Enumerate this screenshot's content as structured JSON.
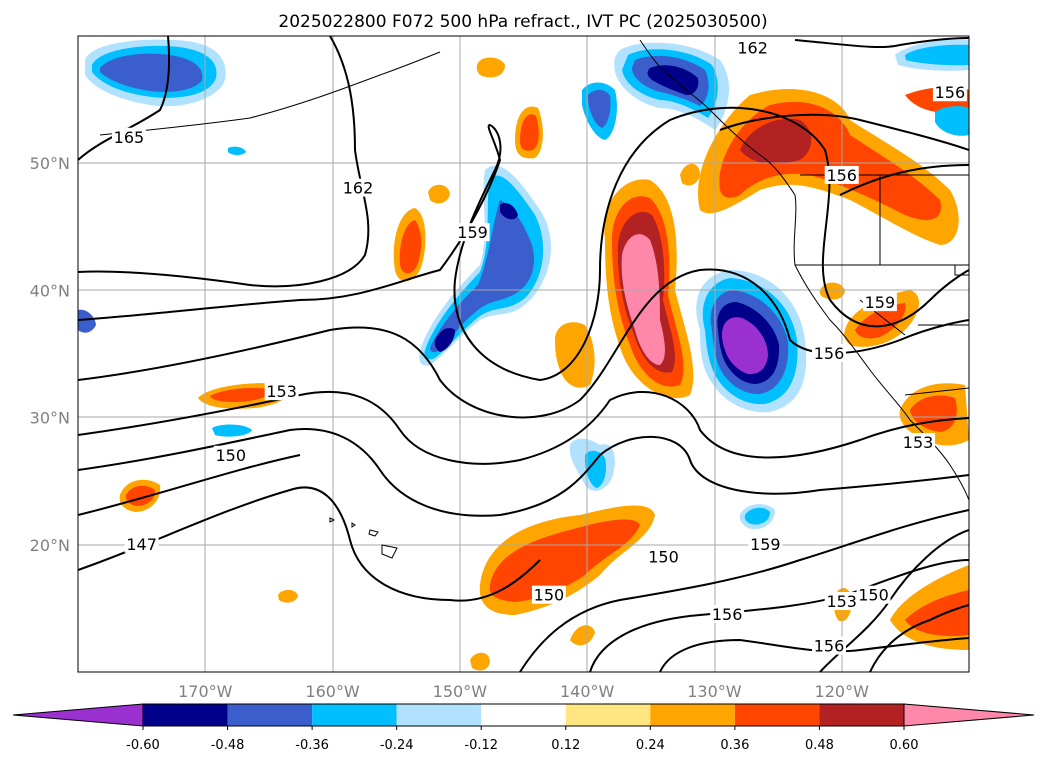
{
  "chart_data": {
    "type": "heatmap",
    "title": "2025022800 F072 500 hPa refract., IVT PC (2025030500)",
    "map": {
      "lon_range": [
        180,
        110
      ],
      "lat_range": [
        10,
        60
      ],
      "lat_ticks": [
        {
          "value": 50,
          "label": "50°N"
        },
        {
          "value": 40,
          "label": "40°N"
        },
        {
          "value": 30,
          "label": "30°N"
        },
        {
          "value": 20,
          "label": "20°N"
        }
      ],
      "lon_ticks": [
        {
          "value": 170,
          "label": "170°W"
        },
        {
          "value": 160,
          "label": "160°W"
        },
        {
          "value": 150,
          "label": "150°W"
        },
        {
          "value": 140,
          "label": "140°W"
        },
        {
          "value": 130,
          "label": "130°W"
        },
        {
          "value": 120,
          "label": "120°W"
        }
      ],
      "grid": true
    },
    "colorbar": {
      "levels": [
        "-0.60",
        "-0.48",
        "-0.36",
        "-0.24",
        "-0.12",
        "0.12",
        "0.24",
        "0.36",
        "0.48",
        "0.60"
      ],
      "colors": [
        "#9b30d0",
        "#00008b",
        "#3a5fcd",
        "#00bfff",
        "#b0e2ff",
        "#ffffff",
        "#ffe680",
        "#ffa500",
        "#ff4500",
        "#b22222",
        "#ff88aa"
      ],
      "extend": "both"
    },
    "contour_labels": [
      {
        "text": "162",
        "lon": 127,
        "lat": 59
      },
      {
        "text": "165",
        "lon": 176,
        "lat": 52
      },
      {
        "text": "162",
        "lon": 158,
        "lat": 48
      },
      {
        "text": "159",
        "lon": 149,
        "lat": 44.5
      },
      {
        "text": "156",
        "lon": 111.5,
        "lat": 55.5
      },
      {
        "text": "156",
        "lon": 120,
        "lat": 49
      },
      {
        "text": "159",
        "lon": 117,
        "lat": 39
      },
      {
        "text": "156",
        "lon": 121,
        "lat": 35
      },
      {
        "text": "153",
        "lon": 164,
        "lat": 32
      },
      {
        "text": "150",
        "lon": 168,
        "lat": 27
      },
      {
        "text": "147",
        "lon": 175,
        "lat": 20
      },
      {
        "text": "153",
        "lon": 114,
        "lat": 28
      },
      {
        "text": "159",
        "lon": 126,
        "lat": 20
      },
      {
        "text": "150",
        "lon": 134,
        "lat": 19
      },
      {
        "text": "150",
        "lon": 143,
        "lat": 16
      },
      {
        "text": "156",
        "lon": 129,
        "lat": 14.5
      },
      {
        "text": "153",
        "lon": 120,
        "lat": 15.5
      },
      {
        "text": "150",
        "lon": 117.5,
        "lat": 16
      },
      {
        "text": "156",
        "lon": 121,
        "lat": 12
      }
    ]
  }
}
